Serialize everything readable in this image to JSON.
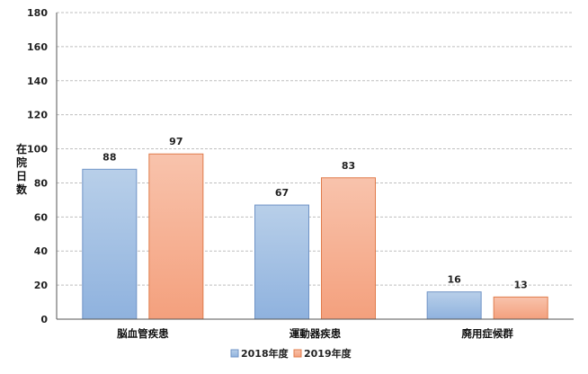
{
  "chart_data": {
    "type": "bar",
    "categories": [
      "脳血管疾患",
      "運動器疾患",
      "廃用症候群"
    ],
    "series": [
      {
        "name": "2018年度",
        "values": [
          88,
          67,
          16
        ],
        "color_top": "#b8cfe9",
        "color_bottom": "#8fb2de",
        "stroke": "#6f93c6"
      },
      {
        "name": "2019年度",
        "values": [
          97,
          83,
          13
        ],
        "color_top": "#f8c3ac",
        "color_bottom": "#f4a07d",
        "stroke": "#e07c4c"
      }
    ],
    "ylabel": "在院日数",
    "ylim": [
      0,
      180
    ],
    "yticks": [
      0,
      20,
      40,
      60,
      80,
      100,
      120,
      140,
      160,
      180
    ],
    "grid": true,
    "legend_position": "bottom"
  }
}
